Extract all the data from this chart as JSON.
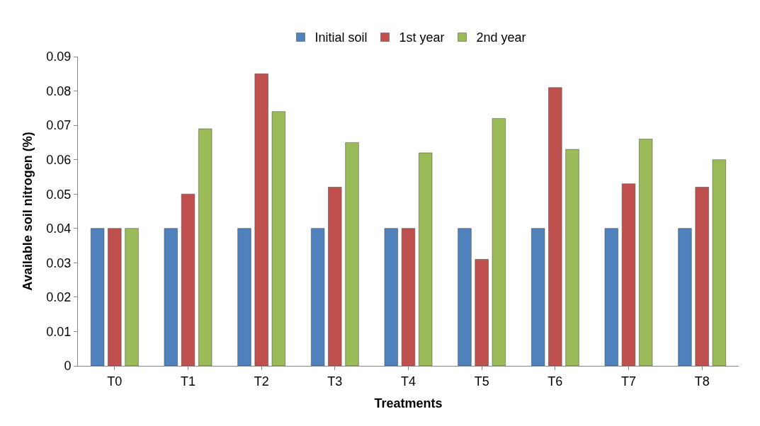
{
  "chart_data": {
    "type": "bar",
    "xlabel": "Treatments",
    "ylabel": "Available soil nitrogen (%)",
    "categories": [
      "T0",
      "T1",
      "T2",
      "T3",
      "T4",
      "T5",
      "T6",
      "T7",
      "T8"
    ],
    "series": [
      {
        "name": "Initial soil",
        "color": "#4f81bd",
        "values": [
          0.04,
          0.04,
          0.04,
          0.04,
          0.04,
          0.04,
          0.04,
          0.04,
          0.04
        ]
      },
      {
        "name": "1st year",
        "color": "#c0504d",
        "values": [
          0.04,
          0.05,
          0.085,
          0.052,
          0.04,
          0.031,
          0.081,
          0.053,
          0.052
        ]
      },
      {
        "name": "2nd year",
        "color": "#9bbb59",
        "values": [
          0.04,
          0.069,
          0.074,
          0.065,
          0.062,
          0.072,
          0.063,
          0.066,
          0.06
        ]
      }
    ],
    "ylim": [
      0,
      0.09
    ],
    "yticks": [
      0,
      0.01,
      0.02,
      0.03,
      0.04,
      0.05,
      0.06,
      0.07,
      0.08,
      0.09
    ],
    "grid": false,
    "legend": "top"
  }
}
